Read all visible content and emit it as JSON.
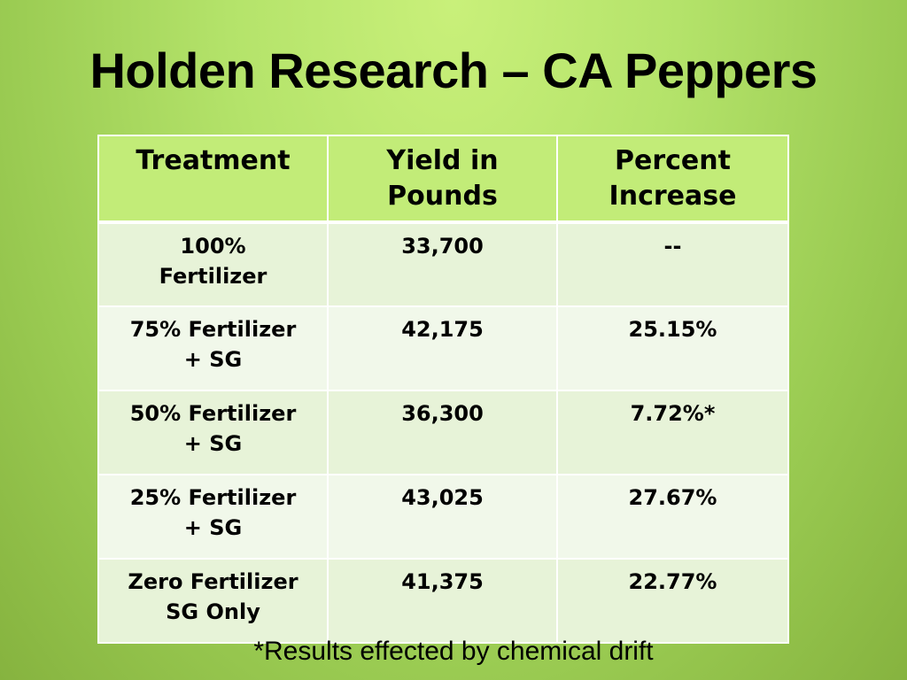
{
  "slide": {
    "title": "Holden Research – CA Peppers",
    "footnote": "*Results effected by chemical drift"
  },
  "table": {
    "headers": [
      [
        "Treatment"
      ],
      [
        "Yield in",
        "Pounds"
      ],
      [
        "Percent",
        "Increase"
      ]
    ],
    "rows": [
      {
        "treatment": [
          "100%",
          "Fertilizer"
        ],
        "yield": "33,700",
        "increase": "--"
      },
      {
        "treatment": [
          "75% Fertilizer",
          "+ SG"
        ],
        "yield": "42,175",
        "increase": "25.15%"
      },
      {
        "treatment": [
          "50% Fertilizer",
          "+ SG"
        ],
        "yield": "36,300",
        "increase": "7.72%*"
      },
      {
        "treatment": [
          "25% Fertilizer",
          "+ SG"
        ],
        "yield": "43,025",
        "increase": "27.67%"
      },
      {
        "treatment": [
          "Zero Fertilizer",
          "SG Only"
        ],
        "yield": "41,375",
        "increase": "22.77%"
      }
    ]
  },
  "colors": {
    "header_cell": "#c2ec78",
    "row_light": "#e7f3d8",
    "row_lighter": "#f1f8ea",
    "background_top": "#c9f07a",
    "background_bottom": "#86b33f"
  }
}
